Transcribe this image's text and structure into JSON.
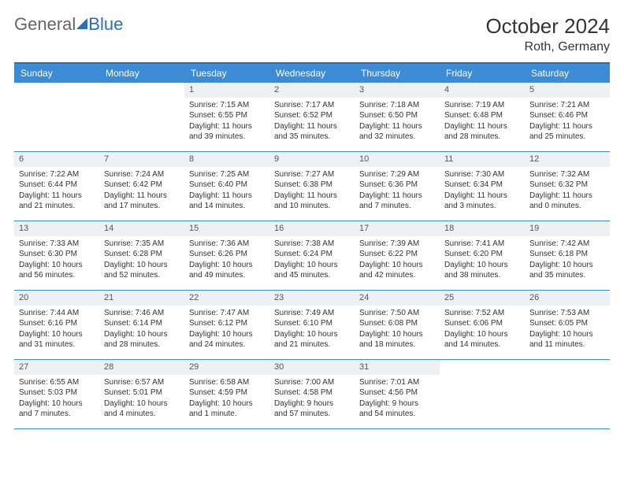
{
  "brand": {
    "part1": "General",
    "part2": "Blue"
  },
  "title": "October 2024",
  "location": "Roth, Germany",
  "colors": {
    "header_bg": "#3d8bd4",
    "border": "#2a6fb5",
    "daynum_bg": "#eef1f3",
    "text": "#333333"
  },
  "day_names": [
    "Sunday",
    "Monday",
    "Tuesday",
    "Wednesday",
    "Thursday",
    "Friday",
    "Saturday"
  ],
  "weeks": [
    [
      null,
      null,
      {
        "n": "1",
        "sunrise": "Sunrise: 7:15 AM",
        "sunset": "Sunset: 6:55 PM",
        "day1": "Daylight: 11 hours",
        "day2": "and 39 minutes."
      },
      {
        "n": "2",
        "sunrise": "Sunrise: 7:17 AM",
        "sunset": "Sunset: 6:52 PM",
        "day1": "Daylight: 11 hours",
        "day2": "and 35 minutes."
      },
      {
        "n": "3",
        "sunrise": "Sunrise: 7:18 AM",
        "sunset": "Sunset: 6:50 PM",
        "day1": "Daylight: 11 hours",
        "day2": "and 32 minutes."
      },
      {
        "n": "4",
        "sunrise": "Sunrise: 7:19 AM",
        "sunset": "Sunset: 6:48 PM",
        "day1": "Daylight: 11 hours",
        "day2": "and 28 minutes."
      },
      {
        "n": "5",
        "sunrise": "Sunrise: 7:21 AM",
        "sunset": "Sunset: 6:46 PM",
        "day1": "Daylight: 11 hours",
        "day2": "and 25 minutes."
      }
    ],
    [
      {
        "n": "6",
        "sunrise": "Sunrise: 7:22 AM",
        "sunset": "Sunset: 6:44 PM",
        "day1": "Daylight: 11 hours",
        "day2": "and 21 minutes."
      },
      {
        "n": "7",
        "sunrise": "Sunrise: 7:24 AM",
        "sunset": "Sunset: 6:42 PM",
        "day1": "Daylight: 11 hours",
        "day2": "and 17 minutes."
      },
      {
        "n": "8",
        "sunrise": "Sunrise: 7:25 AM",
        "sunset": "Sunset: 6:40 PM",
        "day1": "Daylight: 11 hours",
        "day2": "and 14 minutes."
      },
      {
        "n": "9",
        "sunrise": "Sunrise: 7:27 AM",
        "sunset": "Sunset: 6:38 PM",
        "day1": "Daylight: 11 hours",
        "day2": "and 10 minutes."
      },
      {
        "n": "10",
        "sunrise": "Sunrise: 7:29 AM",
        "sunset": "Sunset: 6:36 PM",
        "day1": "Daylight: 11 hours",
        "day2": "and 7 minutes."
      },
      {
        "n": "11",
        "sunrise": "Sunrise: 7:30 AM",
        "sunset": "Sunset: 6:34 PM",
        "day1": "Daylight: 11 hours",
        "day2": "and 3 minutes."
      },
      {
        "n": "12",
        "sunrise": "Sunrise: 7:32 AM",
        "sunset": "Sunset: 6:32 PM",
        "day1": "Daylight: 11 hours",
        "day2": "and 0 minutes."
      }
    ],
    [
      {
        "n": "13",
        "sunrise": "Sunrise: 7:33 AM",
        "sunset": "Sunset: 6:30 PM",
        "day1": "Daylight: 10 hours",
        "day2": "and 56 minutes."
      },
      {
        "n": "14",
        "sunrise": "Sunrise: 7:35 AM",
        "sunset": "Sunset: 6:28 PM",
        "day1": "Daylight: 10 hours",
        "day2": "and 52 minutes."
      },
      {
        "n": "15",
        "sunrise": "Sunrise: 7:36 AM",
        "sunset": "Sunset: 6:26 PM",
        "day1": "Daylight: 10 hours",
        "day2": "and 49 minutes."
      },
      {
        "n": "16",
        "sunrise": "Sunrise: 7:38 AM",
        "sunset": "Sunset: 6:24 PM",
        "day1": "Daylight: 10 hours",
        "day2": "and 45 minutes."
      },
      {
        "n": "17",
        "sunrise": "Sunrise: 7:39 AM",
        "sunset": "Sunset: 6:22 PM",
        "day1": "Daylight: 10 hours",
        "day2": "and 42 minutes."
      },
      {
        "n": "18",
        "sunrise": "Sunrise: 7:41 AM",
        "sunset": "Sunset: 6:20 PM",
        "day1": "Daylight: 10 hours",
        "day2": "and 38 minutes."
      },
      {
        "n": "19",
        "sunrise": "Sunrise: 7:42 AM",
        "sunset": "Sunset: 6:18 PM",
        "day1": "Daylight: 10 hours",
        "day2": "and 35 minutes."
      }
    ],
    [
      {
        "n": "20",
        "sunrise": "Sunrise: 7:44 AM",
        "sunset": "Sunset: 6:16 PM",
        "day1": "Daylight: 10 hours",
        "day2": "and 31 minutes."
      },
      {
        "n": "21",
        "sunrise": "Sunrise: 7:46 AM",
        "sunset": "Sunset: 6:14 PM",
        "day1": "Daylight: 10 hours",
        "day2": "and 28 minutes."
      },
      {
        "n": "22",
        "sunrise": "Sunrise: 7:47 AM",
        "sunset": "Sunset: 6:12 PM",
        "day1": "Daylight: 10 hours",
        "day2": "and 24 minutes."
      },
      {
        "n": "23",
        "sunrise": "Sunrise: 7:49 AM",
        "sunset": "Sunset: 6:10 PM",
        "day1": "Daylight: 10 hours",
        "day2": "and 21 minutes."
      },
      {
        "n": "24",
        "sunrise": "Sunrise: 7:50 AM",
        "sunset": "Sunset: 6:08 PM",
        "day1": "Daylight: 10 hours",
        "day2": "and 18 minutes."
      },
      {
        "n": "25",
        "sunrise": "Sunrise: 7:52 AM",
        "sunset": "Sunset: 6:06 PM",
        "day1": "Daylight: 10 hours",
        "day2": "and 14 minutes."
      },
      {
        "n": "26",
        "sunrise": "Sunrise: 7:53 AM",
        "sunset": "Sunset: 6:05 PM",
        "day1": "Daylight: 10 hours",
        "day2": "and 11 minutes."
      }
    ],
    [
      {
        "n": "27",
        "sunrise": "Sunrise: 6:55 AM",
        "sunset": "Sunset: 5:03 PM",
        "day1": "Daylight: 10 hours",
        "day2": "and 7 minutes."
      },
      {
        "n": "28",
        "sunrise": "Sunrise: 6:57 AM",
        "sunset": "Sunset: 5:01 PM",
        "day1": "Daylight: 10 hours",
        "day2": "and 4 minutes."
      },
      {
        "n": "29",
        "sunrise": "Sunrise: 6:58 AM",
        "sunset": "Sunset: 4:59 PM",
        "day1": "Daylight: 10 hours",
        "day2": "and 1 minute."
      },
      {
        "n": "30",
        "sunrise": "Sunrise: 7:00 AM",
        "sunset": "Sunset: 4:58 PM",
        "day1": "Daylight: 9 hours",
        "day2": "and 57 minutes."
      },
      {
        "n": "31",
        "sunrise": "Sunrise: 7:01 AM",
        "sunset": "Sunset: 4:56 PM",
        "day1": "Daylight: 9 hours",
        "day2": "and 54 minutes."
      },
      null,
      null
    ]
  ]
}
